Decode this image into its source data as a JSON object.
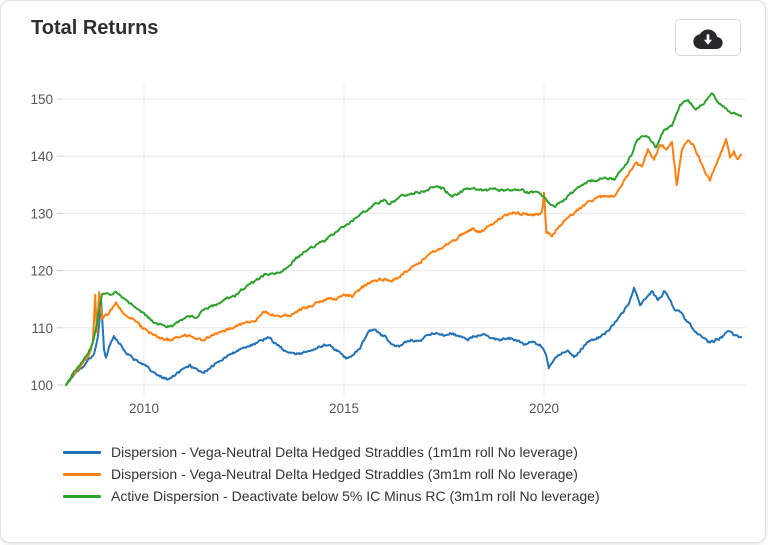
{
  "card": {
    "title": "Total Returns"
  },
  "toolbar": {
    "download_tooltip": "Download"
  },
  "chart_data": {
    "type": "line",
    "title": "Total Returns",
    "xlabel": "",
    "ylabel": "",
    "x_axis": {
      "ticks": [
        2010,
        2015,
        2020
      ],
      "range": [
        2008,
        2025
      ]
    },
    "y_axis": {
      "ticks": [
        100,
        110,
        120,
        130,
        140,
        150
      ],
      "range": [
        98,
        152
      ]
    },
    "grid": true,
    "legend_position": "bottom",
    "grid_color": "#e7e7e7",
    "tick_color": "#cccccc",
    "label_color": "#555555",
    "series": [
      {
        "name": "Dispersion - Vega-Neutral Delta Hedged Straddles (1m1m roll No leverage)",
        "color": "#2273b5",
        "points": [
          [
            2008.05,
            100
          ],
          [
            2008.2,
            101.3
          ],
          [
            2008.4,
            102.8
          ],
          [
            2008.6,
            104.2
          ],
          [
            2008.75,
            105.5
          ],
          [
            2008.85,
            108.5
          ],
          [
            2008.93,
            114.5
          ],
          [
            2009.0,
            106.3
          ],
          [
            2009.05,
            104.8
          ],
          [
            2009.15,
            107.0
          ],
          [
            2009.25,
            108.8
          ],
          [
            2009.35,
            107.5
          ],
          [
            2009.5,
            106.2
          ],
          [
            2009.65,
            105.0
          ],
          [
            2009.8,
            104.3
          ],
          [
            2010.0,
            103.4
          ],
          [
            2010.2,
            102.4
          ],
          [
            2010.4,
            101.5
          ],
          [
            2010.6,
            101.0
          ],
          [
            2010.8,
            101.9
          ],
          [
            2011.0,
            102.8
          ],
          [
            2011.15,
            103.4
          ],
          [
            2011.3,
            102.9
          ],
          [
            2011.5,
            102.2
          ],
          [
            2011.65,
            102.8
          ],
          [
            2011.8,
            103.8
          ],
          [
            2012.0,
            104.7
          ],
          [
            2012.2,
            105.4
          ],
          [
            2012.4,
            106.2
          ],
          [
            2012.6,
            106.8
          ],
          [
            2012.8,
            107.3
          ],
          [
            2013.0,
            108.0
          ],
          [
            2013.15,
            108.2
          ],
          [
            2013.3,
            107.2
          ],
          [
            2013.5,
            106.2
          ],
          [
            2013.7,
            105.6
          ],
          [
            2013.9,
            105.3
          ],
          [
            2014.1,
            106.0
          ],
          [
            2014.3,
            106.5
          ],
          [
            2014.5,
            107.0
          ],
          [
            2014.7,
            106.6
          ],
          [
            2014.9,
            105.8
          ],
          [
            2015.05,
            104.8
          ],
          [
            2015.2,
            105.1
          ],
          [
            2015.4,
            106.4
          ],
          [
            2015.6,
            109.3
          ],
          [
            2015.75,
            109.8
          ],
          [
            2015.9,
            108.8
          ],
          [
            2016.05,
            108.3
          ],
          [
            2016.2,
            106.9
          ],
          [
            2016.35,
            106.6
          ],
          [
            2016.5,
            107.4
          ],
          [
            2016.7,
            107.9
          ],
          [
            2016.9,
            107.6
          ],
          [
            2017.1,
            108.9
          ],
          [
            2017.3,
            109.2
          ],
          [
            2017.5,
            108.8
          ],
          [
            2017.7,
            109.0
          ],
          [
            2017.9,
            108.4
          ],
          [
            2018.1,
            108.0
          ],
          [
            2018.3,
            108.6
          ],
          [
            2018.5,
            108.9
          ],
          [
            2018.7,
            108.2
          ],
          [
            2018.9,
            107.9
          ],
          [
            2019.1,
            108.3
          ],
          [
            2019.3,
            107.7
          ],
          [
            2019.5,
            107.2
          ],
          [
            2019.7,
            107.6
          ],
          [
            2019.9,
            107.0
          ],
          [
            2020.05,
            105.5
          ],
          [
            2020.12,
            103.2
          ],
          [
            2020.3,
            104.8
          ],
          [
            2020.45,
            105.6
          ],
          [
            2020.6,
            105.9
          ],
          [
            2020.75,
            104.9
          ],
          [
            2020.9,
            106.0
          ],
          [
            2021.05,
            107.3
          ],
          [
            2021.2,
            107.9
          ],
          [
            2021.4,
            108.4
          ],
          [
            2021.6,
            109.5
          ],
          [
            2021.8,
            111.2
          ],
          [
            2022.0,
            112.8
          ],
          [
            2022.15,
            114.8
          ],
          [
            2022.25,
            117.2
          ],
          [
            2022.4,
            113.8
          ],
          [
            2022.55,
            115.3
          ],
          [
            2022.7,
            116.3
          ],
          [
            2022.85,
            114.8
          ],
          [
            2023.0,
            116.2
          ],
          [
            2023.1,
            115.6
          ],
          [
            2023.25,
            113.4
          ],
          [
            2023.4,
            112.7
          ],
          [
            2023.55,
            111.4
          ],
          [
            2023.7,
            110.2
          ],
          [
            2023.85,
            109.0
          ],
          [
            2024.0,
            108.2
          ],
          [
            2024.15,
            107.4
          ],
          [
            2024.3,
            107.9
          ],
          [
            2024.45,
            108.4
          ],
          [
            2024.6,
            109.6
          ],
          [
            2024.75,
            108.7
          ],
          [
            2024.93,
            108.4
          ]
        ]
      },
      {
        "name": "Dispersion - Vega-Neutral Delta Hedged Straddles (3m1m roll No leverage)",
        "color": "#ff7f0e",
        "points": [
          [
            2008.05,
            100
          ],
          [
            2008.2,
            101.5
          ],
          [
            2008.4,
            103.0
          ],
          [
            2008.6,
            105.0
          ],
          [
            2008.72,
            107.5
          ],
          [
            2008.78,
            115.8
          ],
          [
            2008.82,
            109.0
          ],
          [
            2008.88,
            116.3
          ],
          [
            2008.95,
            111.5
          ],
          [
            2009.1,
            112.5
          ],
          [
            2009.3,
            114.2
          ],
          [
            2009.5,
            112.5
          ],
          [
            2009.7,
            111.5
          ],
          [
            2009.9,
            110.3
          ],
          [
            2010.1,
            109.3
          ],
          [
            2010.35,
            108.3
          ],
          [
            2010.6,
            107.8
          ],
          [
            2010.8,
            108.3
          ],
          [
            2011.0,
            108.8
          ],
          [
            2011.2,
            108.4
          ],
          [
            2011.45,
            107.9
          ],
          [
            2011.7,
            108.5
          ],
          [
            2011.9,
            109.3
          ],
          [
            2012.1,
            109.8
          ],
          [
            2012.35,
            110.3
          ],
          [
            2012.6,
            110.9
          ],
          [
            2012.8,
            111.4
          ],
          [
            2013.0,
            112.7
          ],
          [
            2013.2,
            112.3
          ],
          [
            2013.45,
            111.9
          ],
          [
            2013.7,
            112.4
          ],
          [
            2014.0,
            113.4
          ],
          [
            2014.3,
            114.3
          ],
          [
            2014.6,
            115.1
          ],
          [
            2014.8,
            114.9
          ],
          [
            2015.0,
            115.9
          ],
          [
            2015.2,
            115.5
          ],
          [
            2015.5,
            117.3
          ],
          [
            2015.75,
            118.4
          ],
          [
            2016.0,
            118.6
          ],
          [
            2016.2,
            118.1
          ],
          [
            2016.5,
            119.6
          ],
          [
            2016.75,
            120.9
          ],
          [
            2017.0,
            122.0
          ],
          [
            2017.25,
            123.3
          ],
          [
            2017.5,
            124.4
          ],
          [
            2017.75,
            125.4
          ],
          [
            2018.0,
            126.5
          ],
          [
            2018.2,
            127.2
          ],
          [
            2018.4,
            126.8
          ],
          [
            2018.6,
            127.8
          ],
          [
            2018.8,
            128.6
          ],
          [
            2019.0,
            129.4
          ],
          [
            2019.2,
            130.2
          ],
          [
            2019.45,
            130.0
          ],
          [
            2019.7,
            129.6
          ],
          [
            2019.95,
            130.0
          ],
          [
            2020.0,
            133.5
          ],
          [
            2020.06,
            126.8
          ],
          [
            2020.2,
            126.3
          ],
          [
            2020.35,
            127.4
          ],
          [
            2020.5,
            128.8
          ],
          [
            2020.7,
            129.8
          ],
          [
            2020.9,
            130.8
          ],
          [
            2021.1,
            131.8
          ],
          [
            2021.3,
            132.5
          ],
          [
            2021.5,
            133.1
          ],
          [
            2021.75,
            133.0
          ],
          [
            2022.0,
            135.5
          ],
          [
            2022.15,
            137.2
          ],
          [
            2022.3,
            138.8
          ],
          [
            2022.45,
            138.0
          ],
          [
            2022.6,
            141.3
          ],
          [
            2022.75,
            139.3
          ],
          [
            2022.9,
            142.0
          ],
          [
            2023.05,
            141.3
          ],
          [
            2023.2,
            142.4
          ],
          [
            2023.32,
            135.2
          ],
          [
            2023.45,
            141.0
          ],
          [
            2023.6,
            143.0
          ],
          [
            2023.75,
            141.8
          ],
          [
            2023.9,
            139.3
          ],
          [
            2024.05,
            136.8
          ],
          [
            2024.15,
            135.9
          ],
          [
            2024.3,
            138.5
          ],
          [
            2024.45,
            141.0
          ],
          [
            2024.55,
            143.0
          ],
          [
            2024.65,
            139.8
          ],
          [
            2024.75,
            140.8
          ],
          [
            2024.85,
            139.5
          ],
          [
            2024.93,
            140.3
          ]
        ]
      },
      {
        "name": "Active Dispersion - Deactivate below 5% IC Minus RC (3m1m roll No leverage)",
        "color": "#2da12d",
        "points": [
          [
            2008.05,
            100
          ],
          [
            2008.2,
            101.8
          ],
          [
            2008.4,
            103.5
          ],
          [
            2008.6,
            105.5
          ],
          [
            2008.75,
            108.0
          ],
          [
            2008.85,
            112.0
          ],
          [
            2008.95,
            115.7
          ],
          [
            2009.15,
            115.9
          ],
          [
            2009.3,
            116.4
          ],
          [
            2009.45,
            115.3
          ],
          [
            2009.7,
            114.0
          ],
          [
            2009.9,
            113.0
          ],
          [
            2010.1,
            111.8
          ],
          [
            2010.3,
            110.8
          ],
          [
            2010.5,
            110.3
          ],
          [
            2010.7,
            110.4
          ],
          [
            2010.9,
            111.2
          ],
          [
            2011.1,
            112.1
          ],
          [
            2011.3,
            111.7
          ],
          [
            2011.5,
            113.3
          ],
          [
            2011.7,
            113.7
          ],
          [
            2011.9,
            114.3
          ],
          [
            2012.1,
            115.2
          ],
          [
            2012.3,
            115.7
          ],
          [
            2012.5,
            117.0
          ],
          [
            2012.75,
            118.0
          ],
          [
            2013.0,
            119.2
          ],
          [
            2013.25,
            119.5
          ],
          [
            2013.5,
            120.1
          ],
          [
            2013.75,
            121.7
          ],
          [
            2014.0,
            123.3
          ],
          [
            2014.25,
            124.3
          ],
          [
            2014.5,
            125.2
          ],
          [
            2014.75,
            126.5
          ],
          [
            2015.0,
            127.7
          ],
          [
            2015.25,
            129.0
          ],
          [
            2015.5,
            130.3
          ],
          [
            2015.75,
            131.5
          ],
          [
            2016.0,
            132.4
          ],
          [
            2016.15,
            131.6
          ],
          [
            2016.4,
            133.0
          ],
          [
            2016.7,
            133.5
          ],
          [
            2017.0,
            133.9
          ],
          [
            2017.3,
            134.8
          ],
          [
            2017.5,
            134.2
          ],
          [
            2017.7,
            132.9
          ],
          [
            2018.0,
            134.0
          ],
          [
            2018.25,
            134.5
          ],
          [
            2018.5,
            133.8
          ],
          [
            2018.75,
            134.3
          ],
          [
            2019.0,
            133.8
          ],
          [
            2019.3,
            134.2
          ],
          [
            2019.6,
            133.8
          ],
          [
            2019.9,
            133.5
          ],
          [
            2020.1,
            132.0
          ],
          [
            2020.3,
            131.3
          ],
          [
            2020.5,
            132.3
          ],
          [
            2020.75,
            133.8
          ],
          [
            2021.0,
            135.3
          ],
          [
            2021.25,
            135.8
          ],
          [
            2021.5,
            136.2
          ],
          [
            2021.75,
            136.0
          ],
          [
            2022.0,
            138.0
          ],
          [
            2022.2,
            140.5
          ],
          [
            2022.35,
            143.2
          ],
          [
            2022.6,
            143.5
          ],
          [
            2022.8,
            141.5
          ],
          [
            2023.0,
            144.8
          ],
          [
            2023.2,
            145.2
          ],
          [
            2023.4,
            149.0
          ],
          [
            2023.6,
            150.0
          ],
          [
            2023.8,
            148.3
          ],
          [
            2024.0,
            149.2
          ],
          [
            2024.2,
            150.8
          ],
          [
            2024.35,
            149.4
          ],
          [
            2024.55,
            148.4
          ],
          [
            2024.7,
            147.4
          ],
          [
            2024.93,
            147.0
          ]
        ]
      }
    ]
  }
}
